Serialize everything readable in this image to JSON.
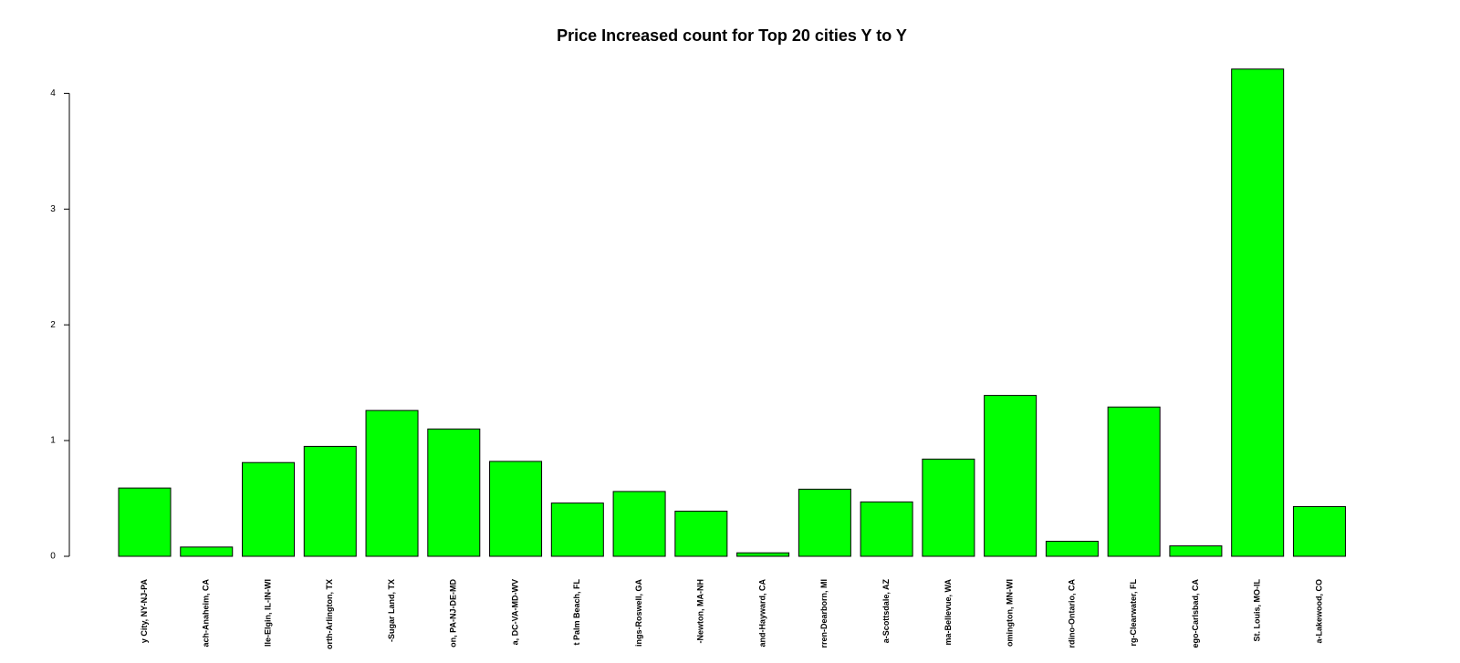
{
  "chart_data": {
    "type": "bar",
    "title": "Price Increased count for Top 20 cities Y to Y",
    "categories": [
      "y City, NY-NJ-PA",
      "ach-Anaheim, CA",
      "lle-Elgin, IL-IN-WI",
      "orth-Arlington, TX",
      "-Sugar Land, TX",
      "on, PA-NJ-DE-MD",
      "a, DC-VA-MD-WV",
      "t Palm Beach, FL",
      "ings-Roswell, GA",
      "-Newton, MA-NH",
      "and-Hayward, CA",
      "rren-Dearborn, MI",
      "a-Scottsdale, AZ",
      "ma-Bellevue, WA",
      "omington, MN-WI",
      "rdino-Ontario, CA",
      "rg-Clearwater, FL",
      "ego-Carlsbad, CA",
      "St. Louis, MO-IL",
      "a-Lakewood, CO"
    ],
    "values": [
      0.59,
      0.08,
      0.81,
      0.95,
      1.26,
      1.1,
      0.82,
      0.46,
      0.56,
      0.39,
      0.03,
      0.58,
      0.47,
      0.84,
      1.39,
      0.13,
      1.29,
      0.09,
      4.21,
      0.43
    ],
    "color": "#00ff00",
    "ylim": [
      0,
      4.2
    ],
    "yticks": [
      0,
      1,
      2,
      3,
      4
    ]
  }
}
